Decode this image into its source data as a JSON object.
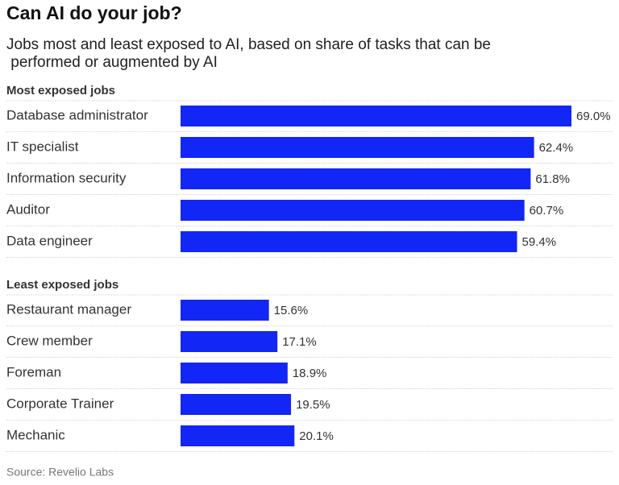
{
  "title": "Can AI do your job?",
  "subtitle": "Jobs most and least exposed to AI, based on share of tasks that can be performed or augmented by AI",
  "source": "Source: Revelio Labs",
  "chart_data": [
    {
      "type": "bar",
      "orientation": "horizontal",
      "title": "Most exposed jobs",
      "categories": [
        "Database administrator",
        "IT specialist",
        "Information security",
        "Auditor",
        "Data engineer"
      ],
      "values": [
        69.0,
        62.4,
        61.8,
        60.7,
        59.4
      ],
      "value_labels": [
        "69.0%",
        "62.4%",
        "61.8%",
        "60.7%",
        "59.4%"
      ],
      "color": "#1226f5"
    },
    {
      "type": "bar",
      "orientation": "horizontal",
      "title": "Least exposed jobs",
      "categories": [
        "Restaurant manager",
        "Crew member",
        "Foreman",
        "Corporate Trainer",
        "Mechanic"
      ],
      "values": [
        15.6,
        17.1,
        18.9,
        19.5,
        20.1
      ],
      "value_labels": [
        "15.6%",
        "17.1%",
        "18.9%",
        "19.5%",
        "20.1%"
      ],
      "color": "#1226f5"
    }
  ]
}
